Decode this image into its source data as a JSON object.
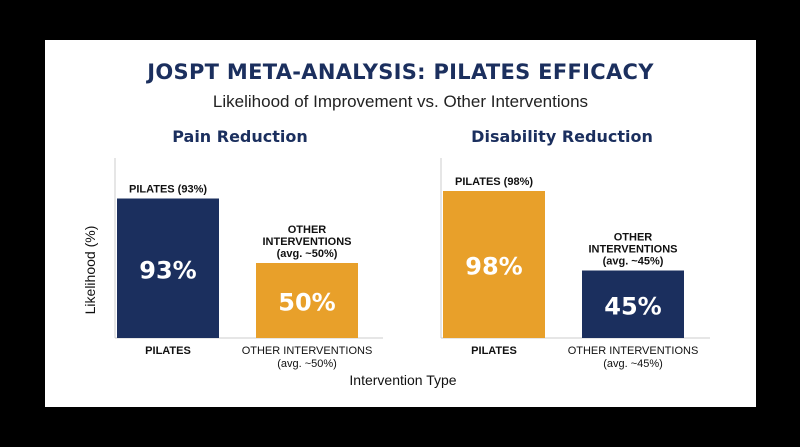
{
  "title": "JOSPT META-ANALYSIS: PILATES EFFICACY",
  "subtitle": "Likelihood of Improvement vs. Other Interventions",
  "colors": {
    "navy": "#1b2f5e",
    "orange": "#e8a02a",
    "axis": "#cccccc",
    "text": "#111111"
  },
  "chart_data": [
    {
      "type": "bar",
      "title": "Pain Reduction",
      "ylabel": "Likelihood (%)",
      "xlabel": "Intervention Type",
      "ylim": [
        0,
        100
      ],
      "categories": [
        "PILATES",
        "OTHER INTERVENTIONS\n(avg. ~50%)"
      ],
      "values": [
        93,
        50
      ],
      "bar_colors": [
        "navy",
        "orange"
      ],
      "value_labels": [
        "93%",
        "50%"
      ],
      "top_labels": [
        "PILATES (93%)",
        "OTHER\nINTERVENTIONS\n(avg. ~50%)"
      ]
    },
    {
      "type": "bar",
      "title": "Disability Reduction",
      "ylabel": "",
      "xlabel": "Intervention Type",
      "ylim": [
        0,
        100
      ],
      "categories": [
        "PILATES",
        "OTHER INTERVENTIONS\n(avg. ~45%)"
      ],
      "values": [
        98,
        45
      ],
      "bar_colors": [
        "orange",
        "navy"
      ],
      "value_labels": [
        "98%",
        "45%"
      ],
      "top_labels": [
        "PILATES (98%)",
        "OTHER\nINTERVENTIONS\n(avg. ~45%)"
      ]
    }
  ]
}
